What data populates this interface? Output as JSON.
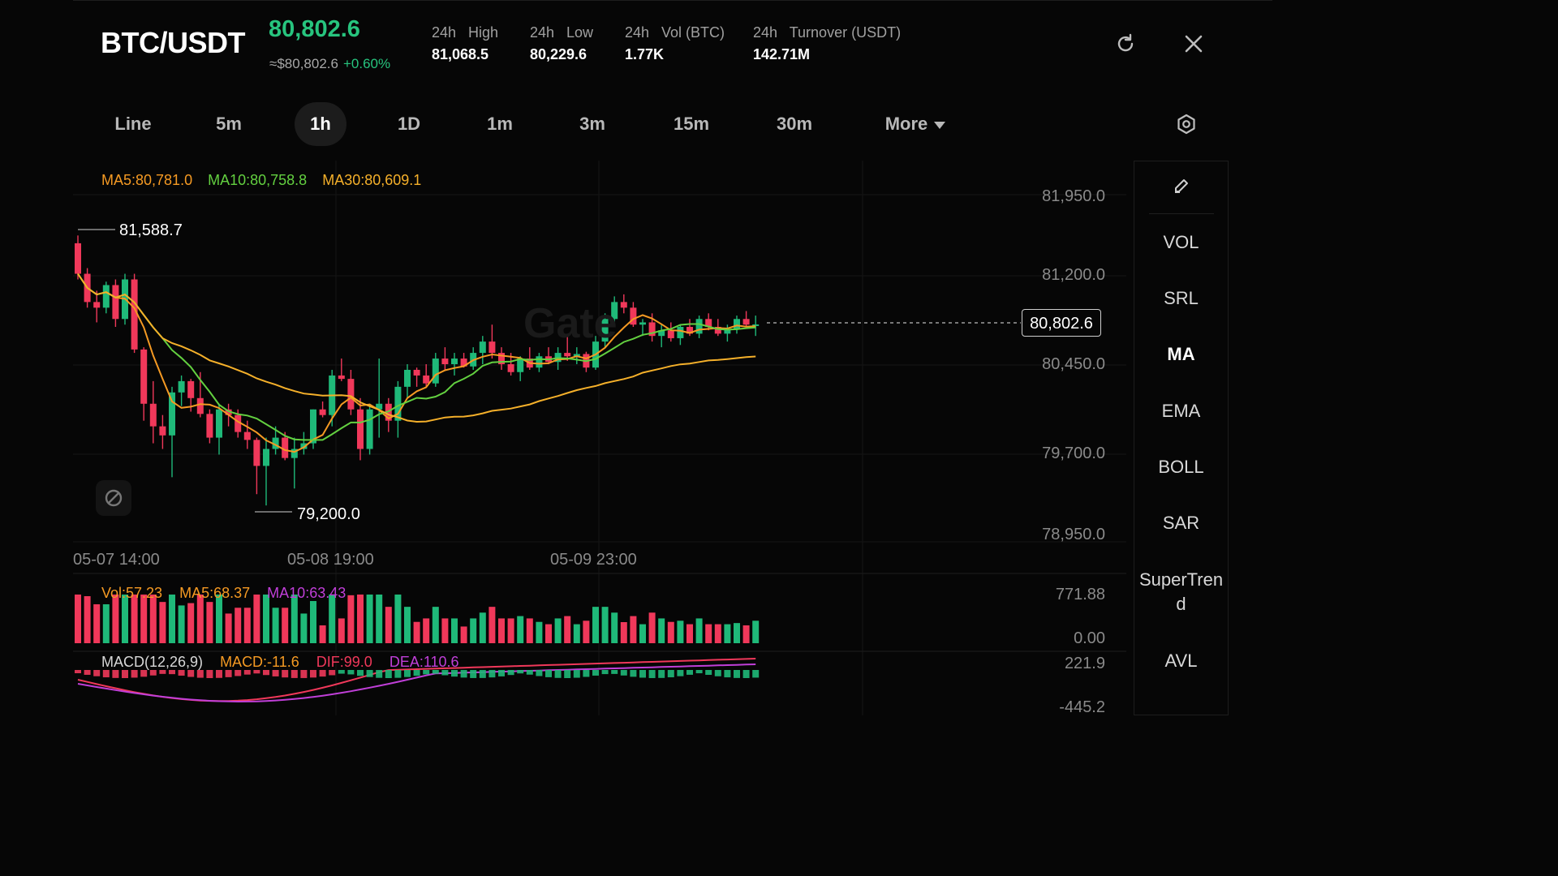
{
  "header": {
    "pair": "BTC/USDT",
    "last_price": "80,802.6",
    "approx_price": "≈$80,802.6",
    "change_pct": "+0.60%",
    "stats": [
      {
        "label": "24h   High",
        "value": "81,068.5"
      },
      {
        "label": "24h   Low",
        "value": "80,229.6"
      },
      {
        "label": "24h   Vol (BTC)",
        "value": "1.77K"
      },
      {
        "label": "24h   Turnover (USDT)",
        "value": "142.71M"
      }
    ],
    "icons": [
      "refresh-icon",
      "close-icon"
    ]
  },
  "tabs": {
    "items": [
      "Line",
      "5m",
      "1h",
      "1D",
      "1m",
      "3m",
      "15m",
      "30m"
    ],
    "active": "1h",
    "more_label": "More",
    "settings_icon": "settings-icon"
  },
  "chart": {
    "ma_legend": {
      "ma5": "MA5:80,781.0",
      "ma10": "MA10:80,758.8",
      "ma30": "MA30:80,609.1"
    },
    "price_axis": [
      "81,950.0",
      "81,200.0",
      "80,450.0",
      "79,700.0",
      "78,950.0"
    ],
    "time_axis": [
      "05-07 14:00",
      "05-08 19:00",
      "05-09 23:00"
    ],
    "high_marker": "81,588.7",
    "low_marker": "79,200.0",
    "current_price_tag": "80,802.6",
    "watermark": "Gate",
    "vol_legend": {
      "vol": "Vol:57.23",
      "ma5": "MA5:68.37",
      "ma10": "MA10:63.43"
    },
    "vol_axis": [
      "771.88",
      "0.00"
    ],
    "macd_legend": {
      "name": "MACD(12,26,9)",
      "macd": "MACD:-11.6",
      "dif": "DIF:99.0",
      "dea": "DEA:110.6"
    },
    "macd_axis": [
      "221.9",
      "-445.2"
    ]
  },
  "sidebar": {
    "items": [
      "VOL",
      "SRL",
      "MA",
      "EMA",
      "BOLL",
      "SAR",
      "SuperTren\nd",
      "AVL"
    ],
    "active": "MA",
    "edit_icon": "pencil-icon"
  },
  "colors": {
    "up": "#1fb979",
    "down": "#f0385a",
    "ma5": "#f59a23",
    "ma10": "#63d040",
    "ma30": "#f5b02a",
    "macd_dea": "#c03fd8"
  },
  "chart_data": {
    "type": "candlestick",
    "interval": "1h",
    "y_range": [
      78950,
      82100
    ],
    "candles": [
      [
        81520,
        81589,
        81200,
        81250
      ],
      [
        81250,
        81300,
        80950,
        81000
      ],
      [
        81000,
        81100,
        80820,
        80950
      ],
      [
        80950,
        81180,
        80900,
        81150
      ],
      [
        81150,
        81200,
        80780,
        80850
      ],
      [
        80850,
        81250,
        80800,
        81200
      ],
      [
        81200,
        81250,
        80550,
        80580
      ],
      [
        80580,
        80600,
        79950,
        80100
      ],
      [
        80100,
        80300,
        79750,
        79900
      ],
      [
        79900,
        80000,
        79700,
        79820
      ],
      [
        79820,
        80250,
        79450,
        80200
      ],
      [
        80200,
        80350,
        80080,
        80300
      ],
      [
        80300,
        80320,
        80030,
        80150
      ],
      [
        80150,
        80380,
        79980,
        80010
      ],
      [
        80010,
        80050,
        79750,
        79800
      ],
      [
        79800,
        80100,
        79650,
        80050
      ],
      [
        80050,
        80100,
        79900,
        80000
      ],
      [
        80000,
        80050,
        79800,
        79850
      ],
      [
        79850,
        79950,
        79700,
        79780
      ],
      [
        79780,
        79800,
        79300,
        79550
      ],
      [
        79550,
        79800,
        79200,
        79700
      ],
      [
        79700,
        79900,
        79650,
        79800
      ],
      [
        79800,
        79850,
        79600,
        79620
      ],
      [
        79620,
        79800,
        79350,
        79700
      ],
      [
        79700,
        79850,
        79650,
        79750
      ],
      [
        79750,
        80050,
        79700,
        80050
      ],
      [
        80050,
        80120,
        79980,
        80000
      ],
      [
        80000,
        80400,
        79900,
        80350
      ],
      [
        80350,
        80500,
        80300,
        80320
      ],
      [
        80320,
        80400,
        80000,
        80050
      ],
      [
        80050,
        80150,
        79600,
        79700
      ],
      [
        79700,
        80100,
        79650,
        80050
      ],
      [
        80050,
        80500,
        79800,
        80100
      ],
      [
        80100,
        80150,
        79850,
        79950
      ],
      [
        79950,
        80300,
        79800,
        80250
      ],
      [
        80250,
        80450,
        80150,
        80400
      ],
      [
        80400,
        80420,
        80250,
        80350
      ],
      [
        80350,
        80450,
        80250,
        80280
      ],
      [
        80280,
        80550,
        80250,
        80500
      ],
      [
        80500,
        80600,
        80400,
        80450
      ],
      [
        80450,
        80550,
        80350,
        80500
      ],
      [
        80500,
        80550,
        80420,
        80430
      ],
      [
        80430,
        80600,
        80400,
        80550
      ],
      [
        80550,
        80700,
        80450,
        80650
      ],
      [
        80650,
        80800,
        80500,
        80550
      ],
      [
        80550,
        80600,
        80400,
        80450
      ],
      [
        80450,
        80550,
        80350,
        80380
      ],
      [
        80380,
        80520,
        80300,
        80500
      ],
      [
        80500,
        80600,
        80400,
        80420
      ],
      [
        80420,
        80550,
        80380,
        80520
      ],
      [
        80520,
        80600,
        80450,
        80470
      ],
      [
        80470,
        80600,
        80400,
        80550
      ],
      [
        80550,
        80700,
        80480,
        80520
      ],
      [
        80520,
        80600,
        80450,
        80540
      ],
      [
        80540,
        80560,
        80380,
        80420
      ],
      [
        80420,
        80700,
        80400,
        80650
      ],
      [
        80650,
        80900,
        80600,
        80850
      ],
      [
        80850,
        81050,
        80800,
        81000
      ],
      [
        81000,
        81068,
        80900,
        80950
      ],
      [
        80950,
        81000,
        80780,
        80800
      ],
      [
        80800,
        80850,
        80700,
        80820
      ],
      [
        80820,
        80900,
        80650,
        80700
      ],
      [
        80700,
        80800,
        80600,
        80750
      ],
      [
        80750,
        80820,
        80650,
        80680
      ],
      [
        80680,
        80800,
        80620,
        80780
      ],
      [
        80780,
        80850,
        80700,
        80720
      ],
      [
        80720,
        80880,
        80680,
        80850
      ],
      [
        80850,
        80900,
        80750,
        80780
      ],
      [
        80780,
        80850,
        80700,
        80720
      ],
      [
        80720,
        80800,
        80650,
        80760
      ],
      [
        80760,
        80880,
        80720,
        80850
      ],
      [
        80850,
        80920,
        80780,
        80800
      ],
      [
        80800,
        80880,
        80700,
        80802
      ]
    ]
  }
}
